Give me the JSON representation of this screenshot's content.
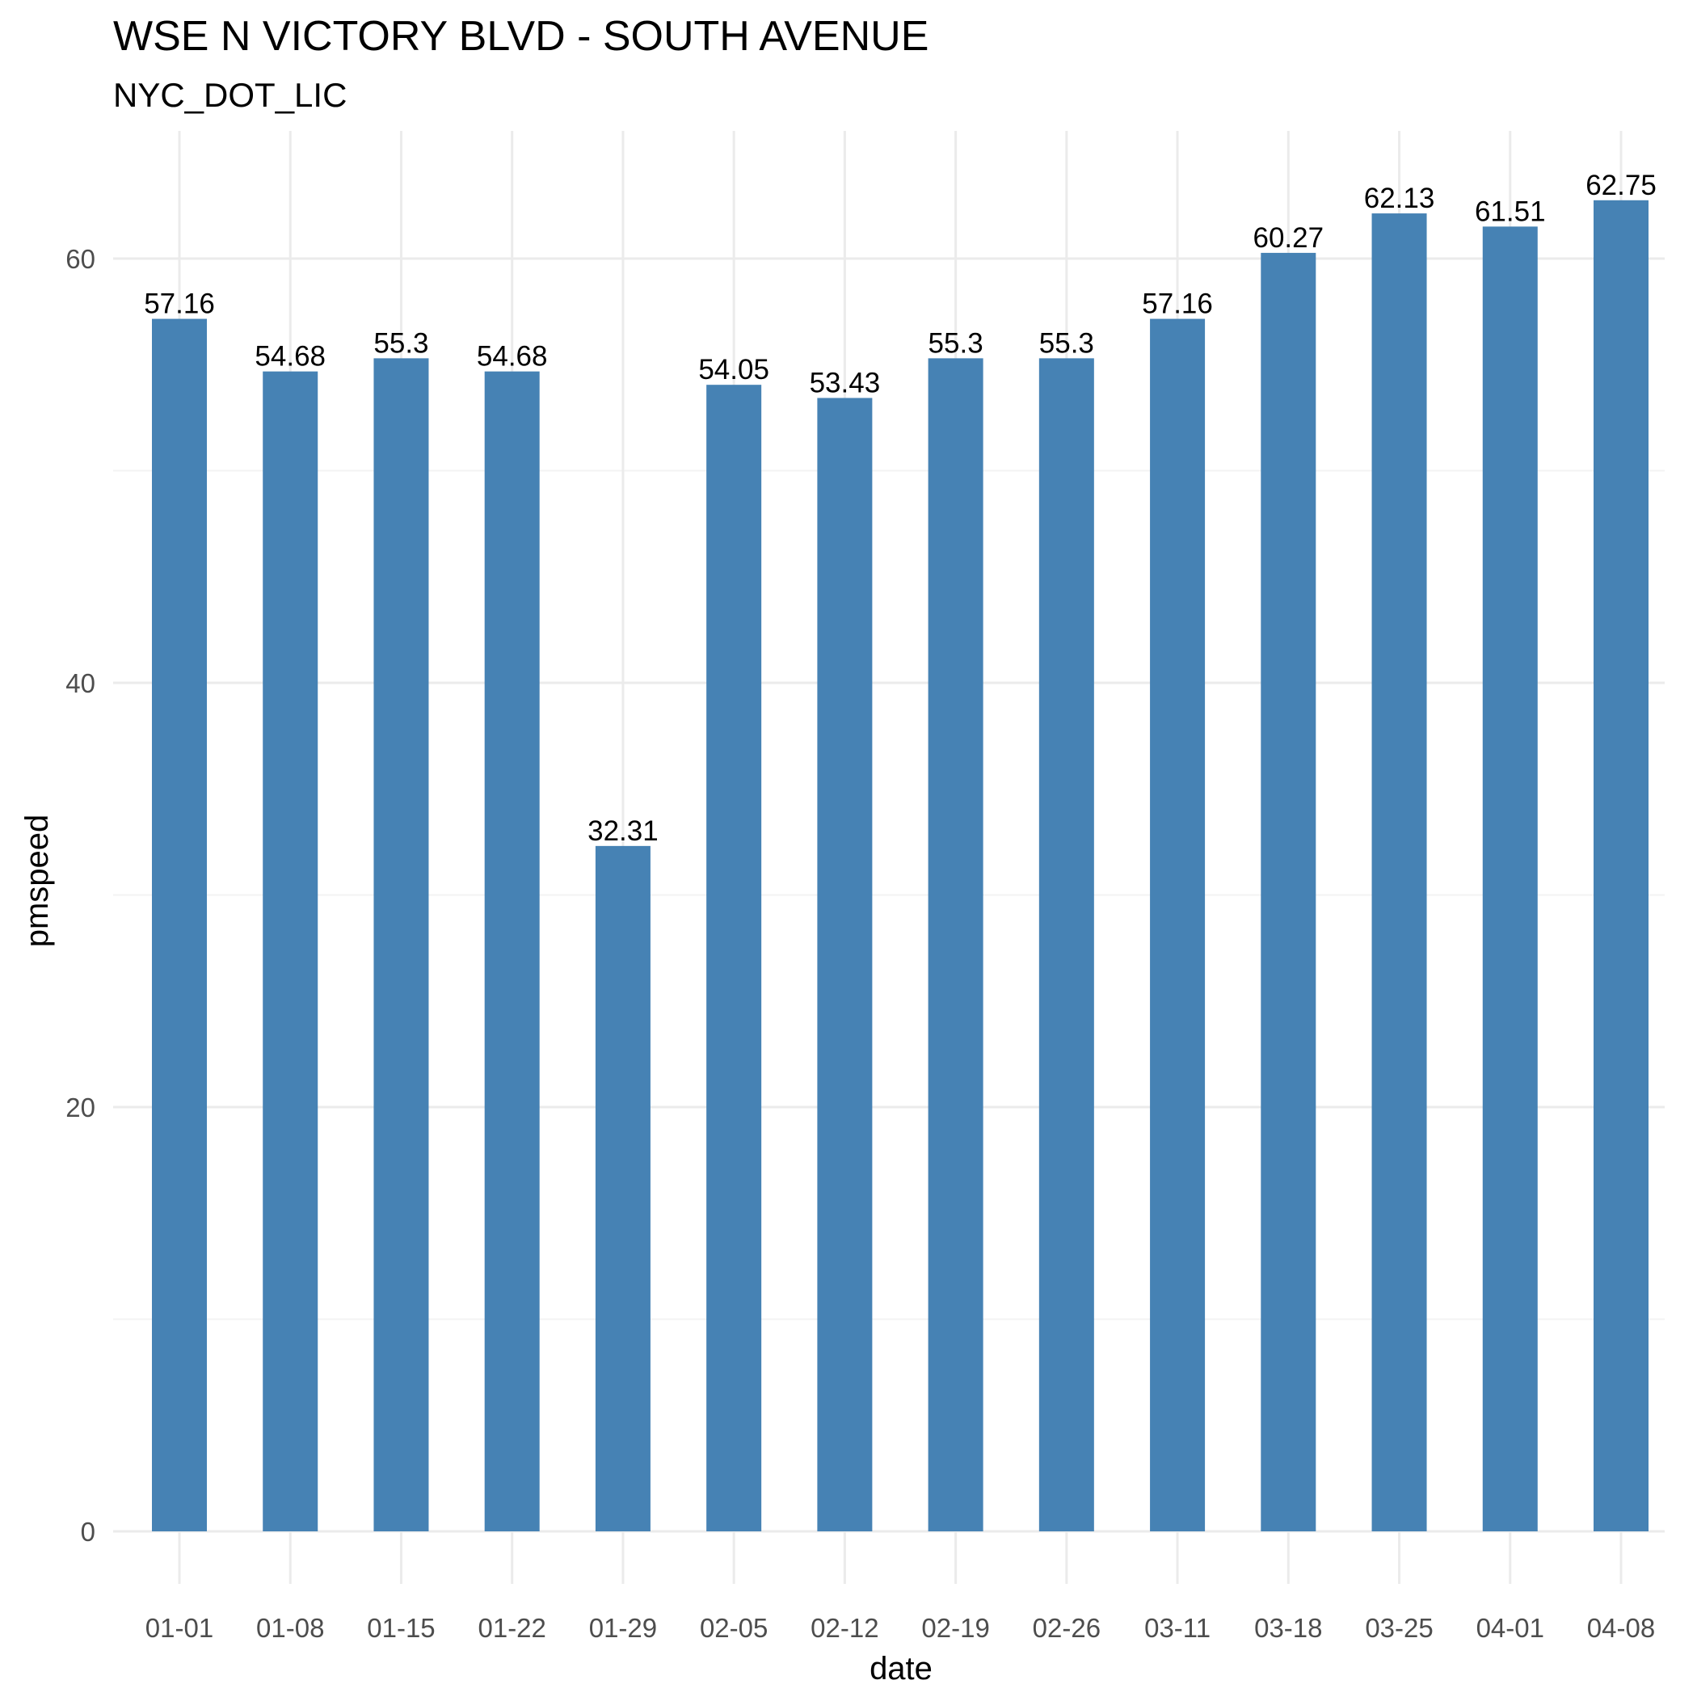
{
  "chart_data": {
    "type": "bar",
    "title": "WSE N VICTORY BLVD - SOUTH AVENUE",
    "subtitle": "NYC_DOT_LIC",
    "xlabel": "date",
    "ylabel": "pmspeed",
    "categories": [
      "01-01",
      "01-08",
      "01-15",
      "01-22",
      "01-29",
      "02-05",
      "02-12",
      "02-19",
      "02-26",
      "03-11",
      "03-18",
      "03-25",
      "04-01",
      "04-08"
    ],
    "values": [
      57.16,
      54.68,
      55.3,
      54.68,
      32.31,
      54.05,
      53.43,
      55.3,
      55.3,
      57.16,
      60.27,
      62.13,
      61.51,
      62.75
    ],
    "data_labels": [
      "57.16",
      "54.68",
      "55.3",
      "54.68",
      "32.31",
      "54.05",
      "53.43",
      "55.3",
      "55.3",
      "57.16",
      "60.27",
      "62.13",
      "61.51",
      "62.75"
    ],
    "y_ticks": [
      0,
      20,
      40,
      60
    ],
    "y_tick_labels": [
      "0",
      "20",
      "40",
      "60"
    ],
    "ylim": [
      0,
      66
    ],
    "grid": true,
    "legend": "none",
    "bar_color": "#4682b4"
  }
}
